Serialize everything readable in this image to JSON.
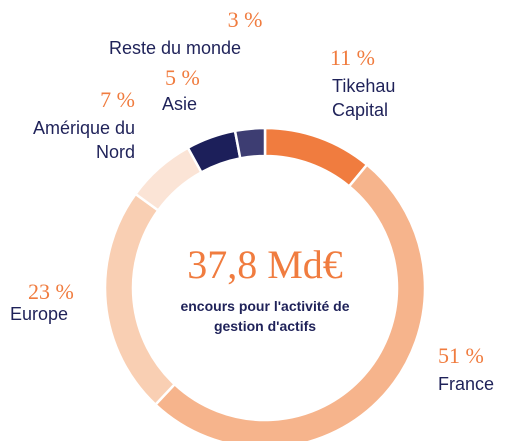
{
  "chart_data": {
    "type": "donut",
    "categories": [
      "Tikehau Capital",
      "France",
      "Europe",
      "Amérique du Nord",
      "Asie",
      "Reste du monde"
    ],
    "values": [
      11,
      51,
      23,
      7,
      5,
      3
    ],
    "value_labels": [
      "11 %",
      "51 %",
      "23 %",
      "7 %",
      "5 %",
      "3 %"
    ],
    "colors": [
      "#f07c3f",
      "#f6b48c",
      "#f9cfb3",
      "#fbe4d6",
      "#1c1f5a",
      "#3d3d72"
    ],
    "center_value": "37,8 Md€",
    "center_label": "encours pour l'activité de gestion d'actifs"
  }
}
